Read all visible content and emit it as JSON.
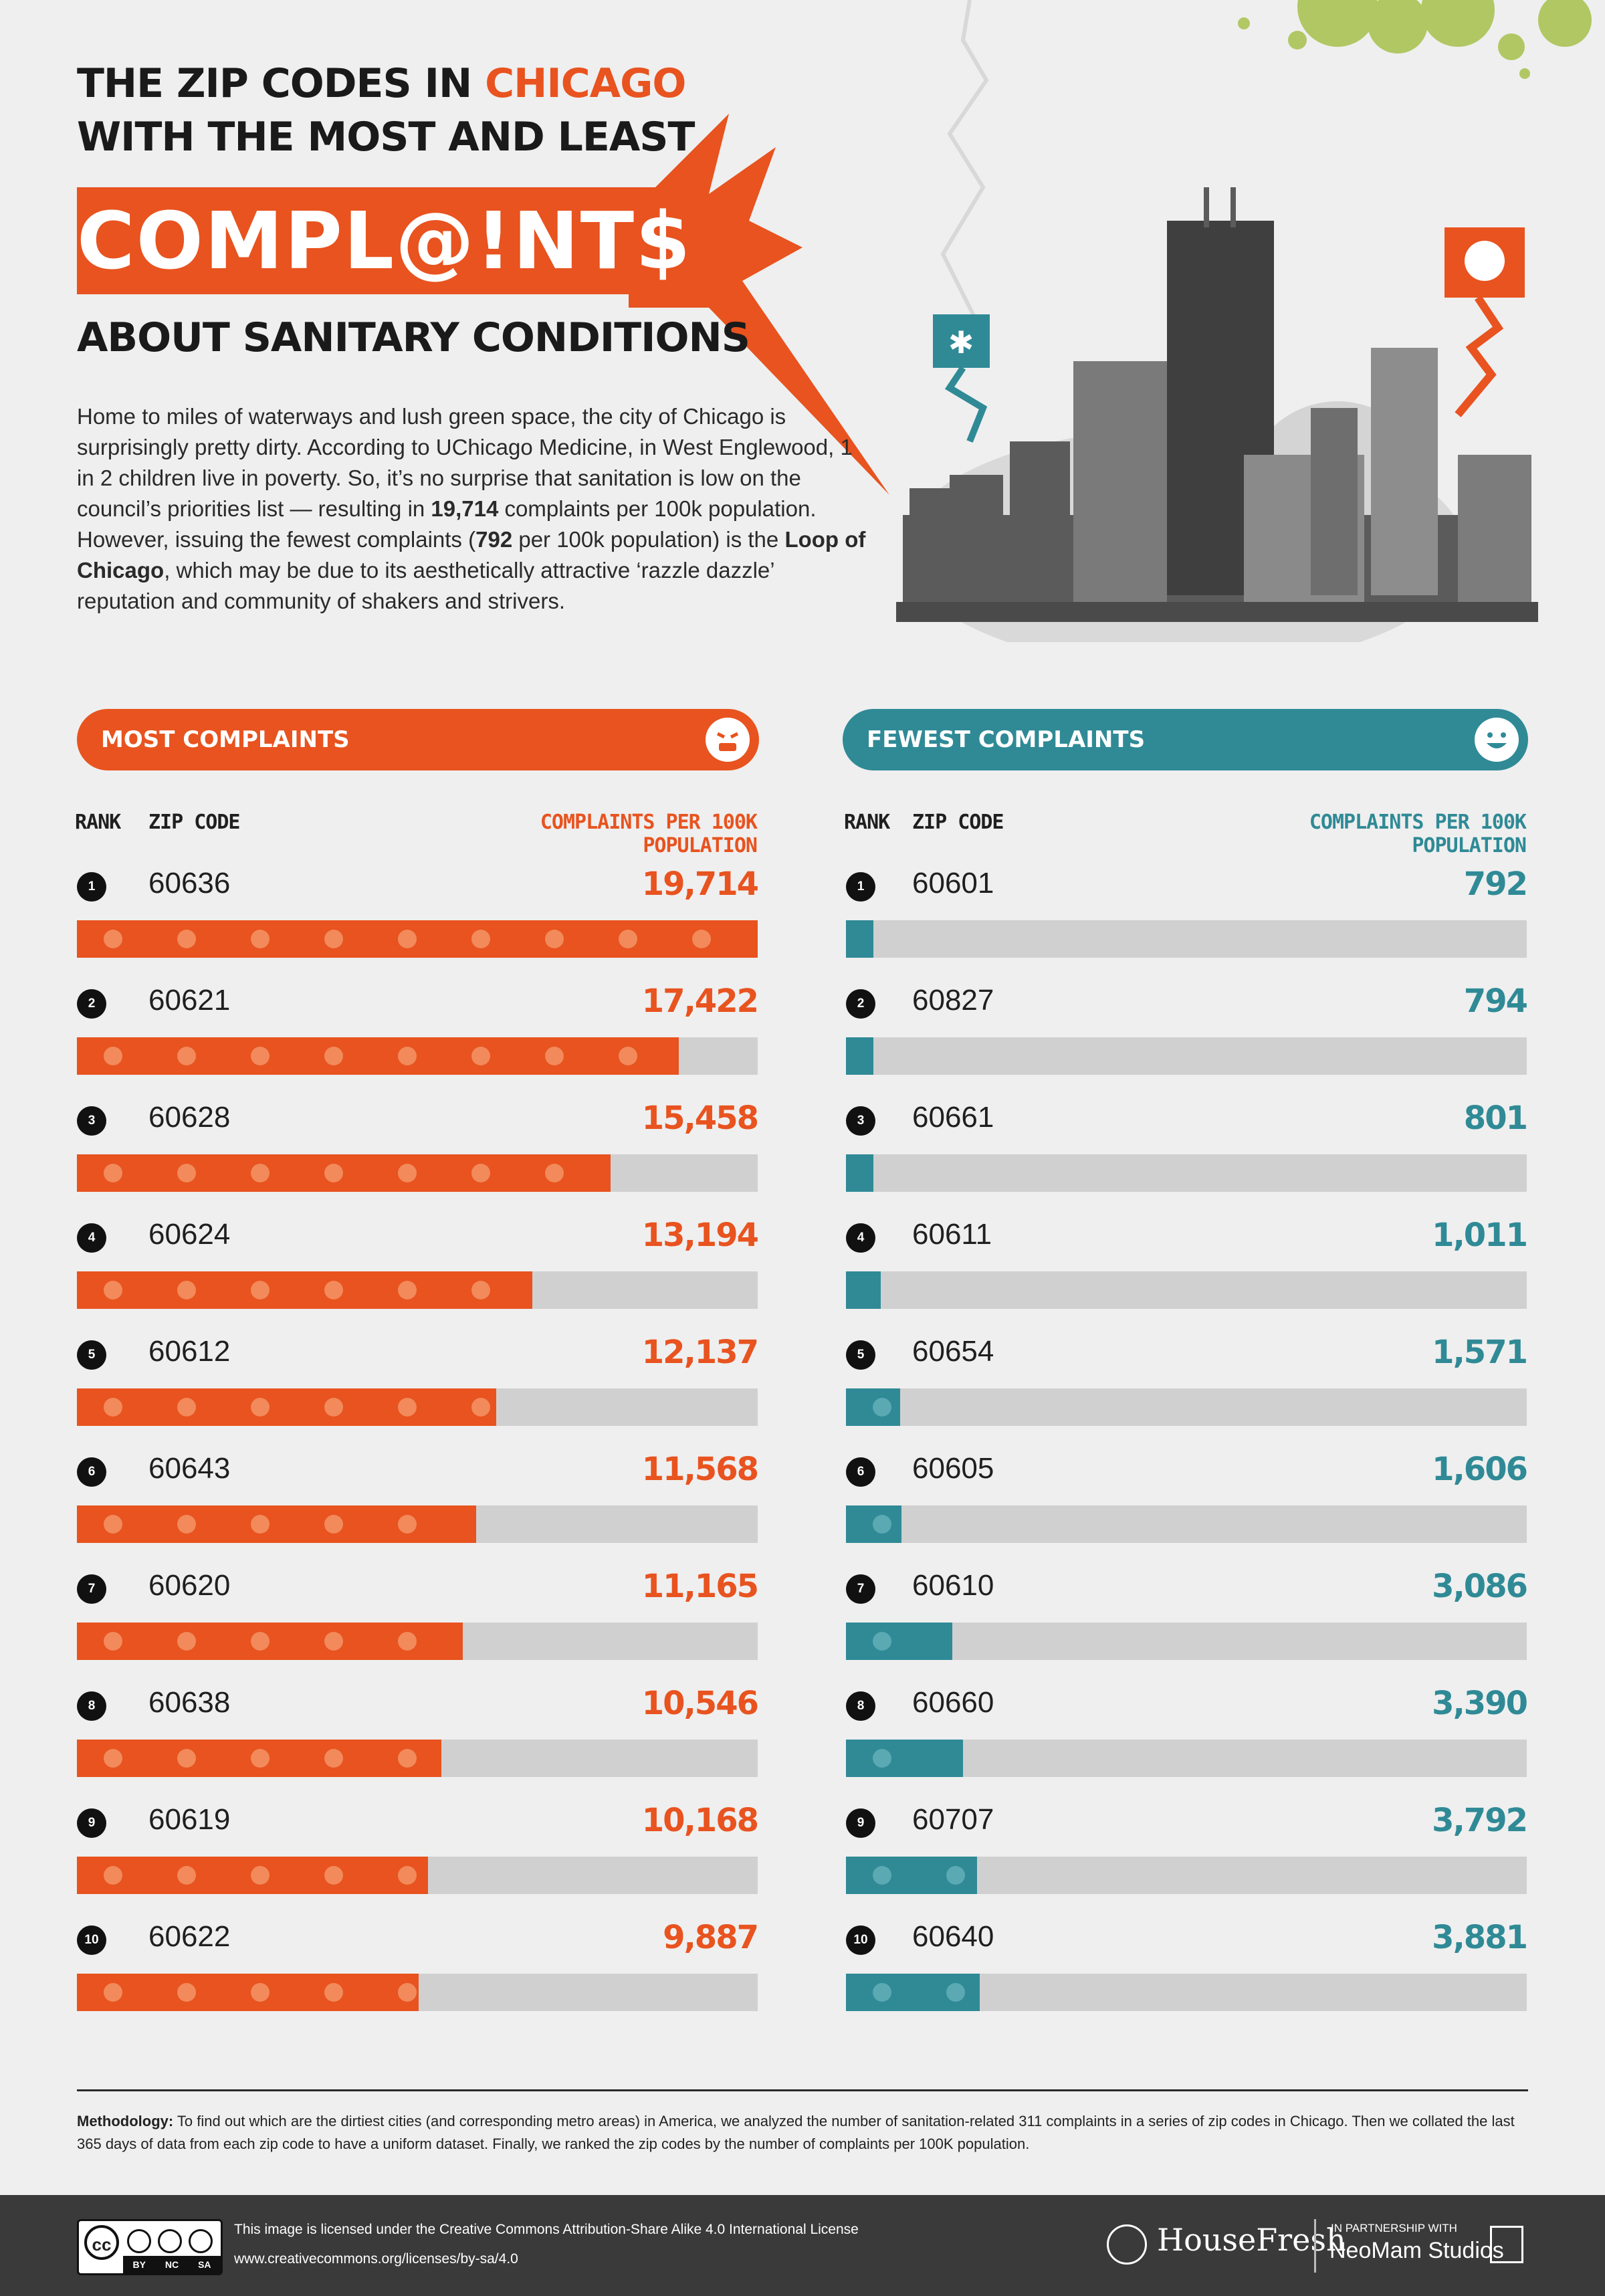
{
  "header": {
    "title_line1_prefix": "THE ZIP CODES IN ",
    "title_line1_accent": "CHICAGO",
    "title_line2": "WITH THE MOST AND LEAST",
    "banner": "COMPL@!NT$",
    "subtitle": "ABOUT SANITARY CONDITIONS"
  },
  "intro": {
    "p1": "Home to miles of waterways and lush green space, the city of Chicago is surprisingly pretty dirty. According to UChicago Medicine, in West Englewood, 1 in 2 children live in poverty. So, it’s no surprise that sanitation is low on the council’s priorities list — resulting in ",
    "b1": "19,714",
    "p2": " complaints per 100k population. However, issuing the fewest complaints (",
    "b2": "792",
    "p3": " per 100k population) is the ",
    "b3": "Loop of Chicago",
    "p4": ", which may be due to its aesthetically attractive ‘razzle dazzle’ reputation and community of shakers and strivers."
  },
  "columns": {
    "rank": "RANK",
    "zip": "ZIP CODE",
    "metric": "COMPLAINTS PER 100K POPULATION"
  },
  "colors": {
    "most": "#e8531f",
    "fewest": "#2f8a96",
    "track": "#d0d0d0"
  },
  "chart_data": [
    {
      "type": "bar",
      "title": "MOST COMPLAINTS",
      "ylabel": "COMPLAINTS PER 100K POPULATION",
      "categories": [
        "60636",
        "60621",
        "60628",
        "60624",
        "60612",
        "60643",
        "60620",
        "60638",
        "60619",
        "60622"
      ],
      "ranks": [
        "1",
        "2",
        "3",
        "4",
        "5",
        "6",
        "7",
        "8",
        "9",
        "10"
      ],
      "values": [
        19714,
        17422,
        15458,
        13194,
        12137,
        11568,
        11165,
        10546,
        10168,
        9887
      ],
      "labels": [
        "19,714",
        "17,422",
        "15,458",
        "13,194",
        "12,137",
        "11,568",
        "11,165",
        "10,546",
        "10,168",
        "9,887"
      ],
      "ylim": [
        0,
        19714
      ]
    },
    {
      "type": "bar",
      "title": "FEWEST COMPLAINTS",
      "ylabel": "COMPLAINTS PER 100K POPULATION",
      "categories": [
        "60601",
        "60827",
        "60661",
        "60611",
        "60654",
        "60605",
        "60610",
        "60660",
        "60707",
        "60640"
      ],
      "ranks": [
        "1",
        "2",
        "3",
        "4",
        "5",
        "6",
        "7",
        "8",
        "9",
        "10"
      ],
      "values": [
        792,
        794,
        801,
        1011,
        1571,
        1606,
        3086,
        3390,
        3792,
        3881
      ],
      "labels": [
        "792",
        "794",
        "801",
        "1,011",
        "1,571",
        "1,606",
        "3,086",
        "3,390",
        "3,792",
        "3,881"
      ],
      "ylim": [
        0,
        19714
      ]
    }
  ],
  "methodology": {
    "label": "Methodology:",
    "text": " To find out which are the dirtiest cities (and corresponding metro areas) in America, we analyzed the number of sanitation-related 311 complaints in a series of zip codes in Chicago. Then we collated the last 365 days of data from each zip code to have a uniform dataset. Finally, we ranked the zip codes by the number of complaints per 100K population."
  },
  "footer": {
    "cc_label": "cc",
    "cc_by": "BY",
    "cc_nc": "NC",
    "cc_sa": "SA",
    "license_line1": "This image is licensed under the Creative Commons Attribution-Share Alike 4.0  International License",
    "license_line2": "www.creativecommons.org/licenses/by-sa/4.0",
    "brand": "HouseFresh",
    "partner_label": "IN PARTNERSHIP WITH",
    "partner_name": "NeoMam Studios"
  }
}
